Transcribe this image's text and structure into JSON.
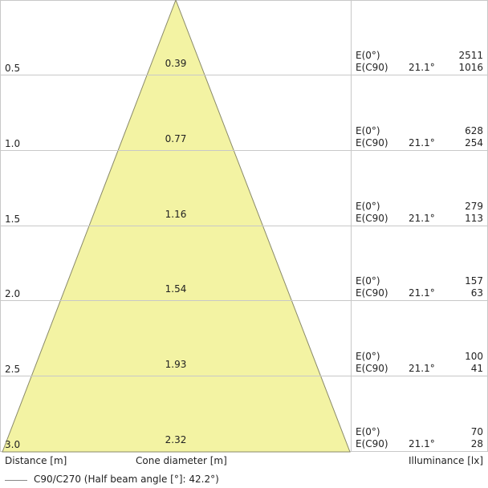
{
  "chart_data": {
    "type": "diagram",
    "rows": [
      {
        "distance": "0.5",
        "diameter": "0.39",
        "e0_label": "E(0°)",
        "e0_value": "2511",
        "ec_label": "E(C90)",
        "angle": "21.1°",
        "ec_value": "1016"
      },
      {
        "distance": "1.0",
        "diameter": "0.77",
        "e0_label": "E(0°)",
        "e0_value": "628",
        "ec_label": "E(C90)",
        "angle": "21.1°",
        "ec_value": "254"
      },
      {
        "distance": "1.5",
        "diameter": "1.16",
        "e0_label": "E(0°)",
        "e0_value": "279",
        "ec_label": "E(C90)",
        "angle": "21.1°",
        "ec_value": "113"
      },
      {
        "distance": "2.0",
        "diameter": "1.54",
        "e0_label": "E(0°)",
        "e0_value": "157",
        "ec_label": "E(C90)",
        "angle": "21.1°",
        "ec_value": "63"
      },
      {
        "distance": "2.5",
        "diameter": "1.93",
        "e0_label": "E(0°)",
        "e0_value": "100",
        "ec_label": "E(C90)",
        "angle": "21.1°",
        "ec_value": "41"
      },
      {
        "distance": "3.0",
        "diameter": "2.32",
        "e0_label": "E(0°)",
        "e0_value": "70",
        "ec_label": "E(C90)",
        "angle": "21.1°",
        "ec_value": "28"
      }
    ],
    "max_distance": 3.0,
    "half_beam_angle_deg": 42.2
  },
  "labels": {
    "distance": "Distance [m]",
    "cone_diameter": "Cone diameter [m]",
    "illuminance": "Illuminance [lx]",
    "legend": "C90/C270 (Half beam angle [°]: 42.2°)"
  },
  "colors": {
    "cone_fill": "#f3f3a3",
    "cone_stroke": "#8a8a6a",
    "grid": "#c8c8c8"
  }
}
